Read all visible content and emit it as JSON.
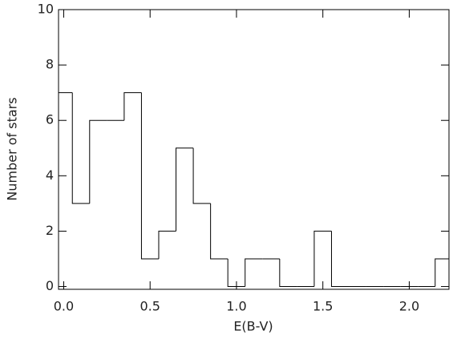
{
  "chart_data": {
    "type": "histogram",
    "xlabel": "E(B-V)",
    "ylabel": "Number of stars",
    "bins": [
      -0.05,
      0.05,
      0.15,
      0.25,
      0.35,
      0.45,
      0.55,
      0.65,
      0.75,
      0.85,
      0.95,
      1.05,
      1.15,
      1.25,
      1.35,
      1.45,
      1.55,
      1.65,
      1.75,
      1.85,
      1.95,
      2.05,
      2.15,
      2.25
    ],
    "values": [
      7,
      3,
      6,
      6,
      7,
      1,
      2,
      5,
      3,
      1,
      0,
      1,
      1,
      0,
      0,
      2,
      0,
      0,
      0,
      0,
      0,
      0,
      1
    ],
    "color": "#000000",
    "xlim": [
      -0.03,
      2.23
    ],
    "xticks": [
      {
        "value": 0,
        "label": "0.0"
      },
      0.5,
      {
        "value": 1,
        "label": "1.0"
      },
      1.5,
      {
        "value": 2,
        "label": "2.0"
      }
    ],
    "ylim": [
      -0.1,
      10
    ],
    "yticks": [
      0,
      2,
      4,
      6,
      8,
      10
    ]
  }
}
